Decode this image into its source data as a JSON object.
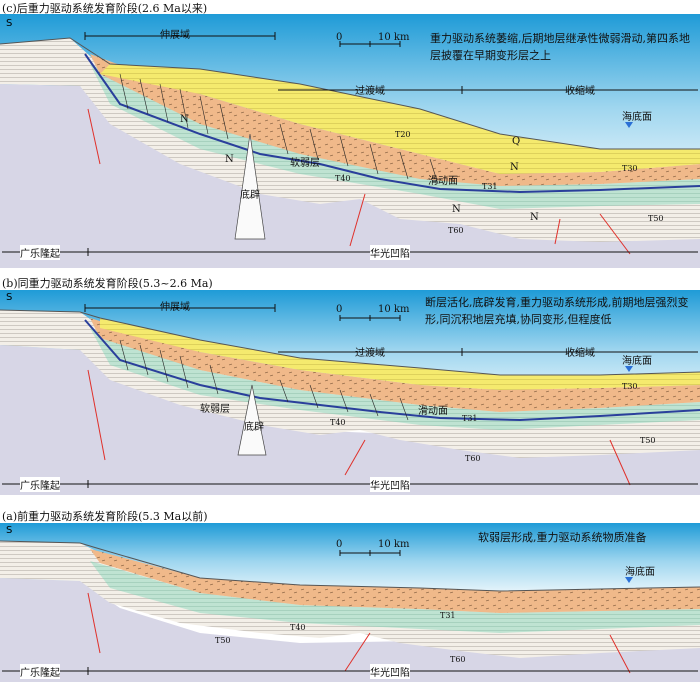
{
  "panels": [
    {
      "title": "(c)后重力驱动系统发育阶段(2.6 Ma以来)",
      "description": "重力驱动系统萎缩,后期地层继承性微弱滑动,第四系地层披覆在早期变形层之上",
      "domains": {
        "extension": "伸展域",
        "transition": "过渡域",
        "compression": "收缩域"
      },
      "regions": {
        "uplift": "广乐隆起",
        "depression": "华光凹陷"
      },
      "labels": {
        "s": "S",
        "seafloor": "海底面",
        "weak_layer": "软弱层",
        "slide_surface": "滑动面",
        "diapir": "底辟",
        "q": "Q"
      },
      "horizons": [
        "T20",
        "T30",
        "T31",
        "T40",
        "T50",
        "T60"
      ],
      "units": {
        "n1_3l": "N",
        "n2": "N",
        "n1_2": "N",
        "n1_1": "N"
      },
      "scale": {
        "zero": "0",
        "ten": "10 km"
      }
    },
    {
      "title": "(b)同重力驱动系统发育阶段(5.3~2.6 Ma)",
      "description": "断层活化,底辟发育,重力驱动系统形成,前期地层强烈变形,同沉积地层充填,协同变形,但程度低",
      "domains": {
        "extension": "伸展域",
        "transition": "过渡域",
        "compression": "收缩域"
      },
      "regions": {
        "uplift": "广乐隆起",
        "depression": "华光凹陷"
      },
      "labels": {
        "s": "S",
        "seafloor": "海底面",
        "weak_layer": "软弱层",
        "slide_surface": "滑动面",
        "diapir": "底辟"
      },
      "horizons": [
        "T30",
        "T31",
        "T40",
        "T50",
        "T60"
      ],
      "scale": {
        "zero": "0",
        "ten": "10 km"
      }
    },
    {
      "title": "(a)前重力驱动系统发育阶段(5.3 Ma以前)",
      "description": "软弱层形成,重力驱动系统物质准备",
      "regions": {
        "uplift": "广乐隆起",
        "depression": "华光凹陷"
      },
      "labels": {
        "s": "S",
        "seafloor": "海底面"
      },
      "horizons": [
        "T31",
        "T40",
        "T50",
        "T60"
      ],
      "scale": {
        "zero": "0",
        "ten": "10 km"
      }
    }
  ],
  "colors": {
    "sea_top": "#1f9bd7",
    "sea_bottom": "#e8f5fb",
    "yellow": "#f5ea6e",
    "orange": "#f0b98a",
    "green": "#bfe3d2",
    "strata": "#f3efe8",
    "basement": "#d7d6e6",
    "weak_line": "#2a3f9b",
    "fault": "#e0302a"
  }
}
